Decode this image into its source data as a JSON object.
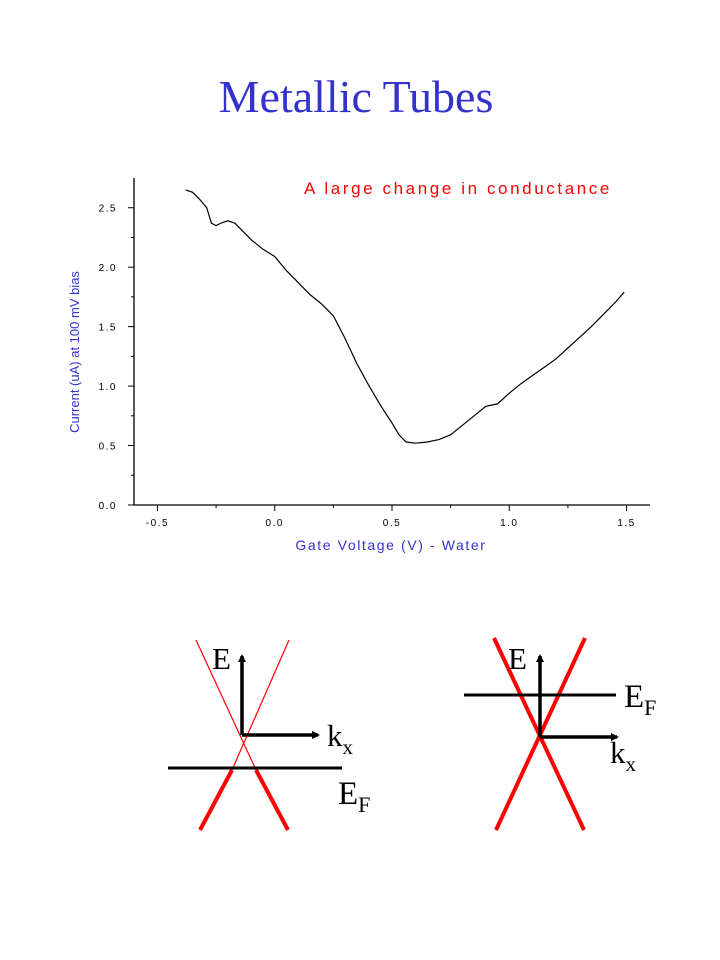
{
  "slide": {
    "title": "Metallic Tubes"
  },
  "chart_data": {
    "type": "line",
    "title": "A large change in conductance",
    "xlabel": "Gate Voltage (V) - Water",
    "ylabel": "Current (uA) at 100 mV bias",
    "xlim": [
      -0.6,
      1.6
    ],
    "ylim": [
      0.0,
      2.75
    ],
    "x_ticks": [
      "-0.5",
      "0.0",
      "0.5",
      "1.0",
      "1.5"
    ],
    "y_ticks": [
      "0.0",
      "0.5",
      "1.0",
      "1.5",
      "2.0",
      "2.5"
    ],
    "grid": false,
    "colors": {
      "title": "#ff0000",
      "axis_label": "#3333cc",
      "line": "#000000"
    },
    "series": [
      {
        "x": [
          -0.38,
          -0.35,
          -0.32,
          -0.29,
          -0.27,
          -0.25,
          -0.23,
          -0.2,
          -0.17,
          -0.14,
          -0.1,
          -0.05,
          0.0,
          0.05,
          0.1,
          0.15,
          0.2,
          0.25,
          0.3,
          0.35,
          0.4,
          0.45,
          0.5,
          0.53,
          0.56,
          0.6,
          0.65,
          0.7,
          0.75,
          0.8,
          0.85,
          0.9,
          0.95,
          1.0,
          1.05,
          1.1,
          1.15,
          1.2,
          1.25,
          1.3,
          1.35,
          1.4,
          1.45,
          1.49
        ],
        "y": [
          2.65,
          2.63,
          2.57,
          2.5,
          2.37,
          2.35,
          2.37,
          2.39,
          2.37,
          2.31,
          2.23,
          2.15,
          2.09,
          1.97,
          1.87,
          1.77,
          1.69,
          1.59,
          1.4,
          1.19,
          1.01,
          0.84,
          0.69,
          0.59,
          0.53,
          0.52,
          0.53,
          0.55,
          0.59,
          0.67,
          0.75,
          0.83,
          0.85,
          0.94,
          1.02,
          1.09,
          1.16,
          1.23,
          1.32,
          1.41,
          1.5,
          1.6,
          1.7,
          1.79
        ]
      }
    ]
  },
  "diagrams": {
    "left": {
      "e_label": "E",
      "k_label": "k",
      "k_sub": "x",
      "ef_label": "E",
      "ef_sub": "F"
    },
    "right": {
      "e_label": "E",
      "k_label": "k",
      "k_sub": "x",
      "ef_label": "E",
      "ef_sub": "F"
    }
  }
}
